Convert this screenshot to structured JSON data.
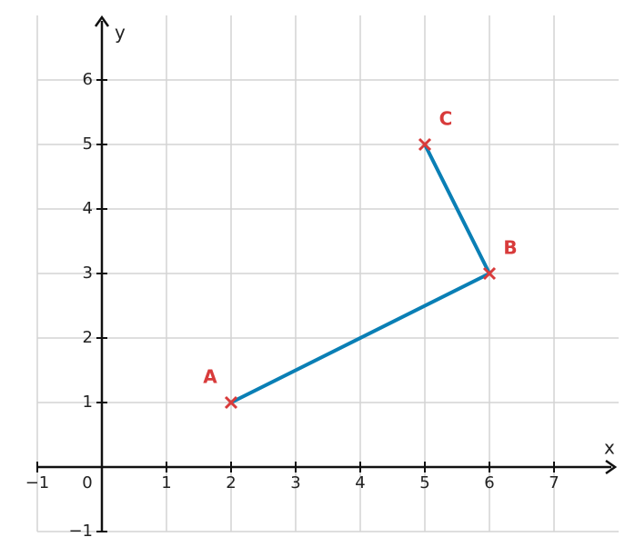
{
  "chart_data": {
    "type": "line",
    "x_label": "x",
    "y_label": "y",
    "x": [
      2,
      6,
      5
    ],
    "values": [
      1,
      3,
      5
    ],
    "point_labels": [
      "A",
      "B",
      "C"
    ],
    "line_color": "#0a7fb5",
    "marker_color": "#d83b3b",
    "xlim": [
      -1,
      8
    ],
    "ylim": [
      -1,
      7
    ],
    "xticks": [
      {
        "value": -1,
        "label": "−1"
      },
      0,
      1,
      2,
      3,
      4,
      5,
      6,
      7
    ],
    "yticks": [
      {
        "value": -1,
        "label": "−1"
      },
      1,
      2,
      3,
      4,
      5,
      6
    ],
    "grid": true
  }
}
